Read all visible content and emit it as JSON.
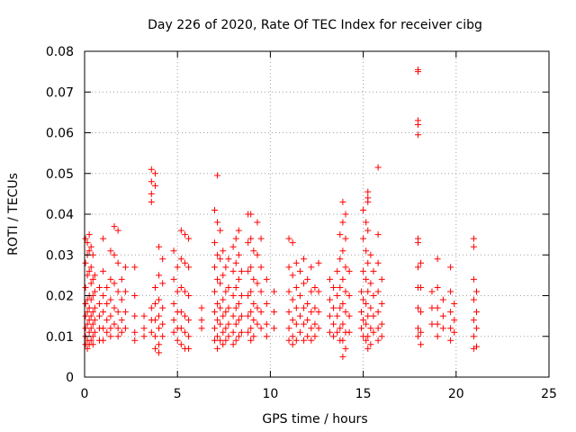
{
  "chart_data": {
    "type": "scatter",
    "title": "Day 226 of 2020, Rate Of TEC Index for receiver cibg",
    "xlabel": "GPS time / hours",
    "ylabel": "ROTI / TECUs",
    "xlim": [
      0,
      25
    ],
    "ylim": [
      0,
      0.08
    ],
    "xticks": [
      0,
      5,
      10,
      15,
      20,
      25
    ],
    "yticks": [
      0,
      0.01,
      0.02,
      0.03,
      0.04,
      0.05,
      0.06,
      0.07,
      0.08
    ],
    "xtick_labels": [
      "0",
      "5",
      "10",
      "15",
      "20",
      "25"
    ],
    "ytick_labels": [
      "0",
      "0.01",
      "0.02",
      "0.03",
      "0.04",
      "0.05",
      "0.06",
      "0.07",
      "0.08"
    ],
    "grid": true,
    "marker": "+",
    "color": "#ff0000",
    "points": [
      [
        0.05,
        0.034
      ],
      [
        0.05,
        0.028
      ],
      [
        0.05,
        0.022
      ],
      [
        0.05,
        0.018
      ],
      [
        0.05,
        0.015
      ],
      [
        0.05,
        0.012
      ],
      [
        0.05,
        0.01
      ],
      [
        0.05,
        0.008
      ],
      [
        0.15,
        0.033
      ],
      [
        0.15,
        0.03
      ],
      [
        0.15,
        0.025
      ],
      [
        0.15,
        0.019
      ],
      [
        0.15,
        0.016
      ],
      [
        0.15,
        0.013
      ],
      [
        0.15,
        0.009
      ],
      [
        0.15,
        0.007
      ],
      [
        0.25,
        0.035
      ],
      [
        0.25,
        0.031
      ],
      [
        0.25,
        0.026
      ],
      [
        0.25,
        0.02
      ],
      [
        0.25,
        0.017
      ],
      [
        0.25,
        0.014
      ],
      [
        0.25,
        0.011
      ],
      [
        0.25,
        0.008
      ],
      [
        0.35,
        0.032
      ],
      [
        0.35,
        0.027
      ],
      [
        0.35,
        0.023
      ],
      [
        0.35,
        0.019
      ],
      [
        0.35,
        0.015
      ],
      [
        0.35,
        0.012
      ],
      [
        0.35,
        0.009
      ],
      [
        0.45,
        0.03
      ],
      [
        0.45,
        0.024
      ],
      [
        0.45,
        0.02
      ],
      [
        0.45,
        0.016
      ],
      [
        0.45,
        0.013
      ],
      [
        0.45,
        0.01
      ],
      [
        0.45,
        0.008
      ],
      [
        0.55,
        0.025
      ],
      [
        0.55,
        0.021
      ],
      [
        0.55,
        0.017
      ],
      [
        0.55,
        0.014
      ],
      [
        0.55,
        0.011
      ],
      [
        0.8,
        0.022
      ],
      [
        0.8,
        0.018
      ],
      [
        0.8,
        0.015
      ],
      [
        0.8,
        0.012
      ],
      [
        0.8,
        0.009
      ],
      [
        1.0,
        0.034
      ],
      [
        1.0,
        0.026
      ],
      [
        1.0,
        0.02
      ],
      [
        1.0,
        0.016
      ],
      [
        1.0,
        0.012
      ],
      [
        1.0,
        0.009
      ],
      [
        1.2,
        0.022
      ],
      [
        1.2,
        0.018
      ],
      [
        1.2,
        0.014
      ],
      [
        1.2,
        0.011
      ],
      [
        1.4,
        0.031
      ],
      [
        1.4,
        0.024
      ],
      [
        1.4,
        0.019
      ],
      [
        1.4,
        0.015
      ],
      [
        1.4,
        0.012
      ],
      [
        1.4,
        0.01
      ],
      [
        1.6,
        0.037
      ],
      [
        1.6,
        0.03
      ],
      [
        1.6,
        0.023
      ],
      [
        1.6,
        0.017
      ],
      [
        1.6,
        0.013
      ],
      [
        1.8,
        0.036
      ],
      [
        1.8,
        0.028
      ],
      [
        1.8,
        0.021
      ],
      [
        1.8,
        0.016
      ],
      [
        1.8,
        0.012
      ],
      [
        1.8,
        0.01
      ],
      [
        2.0,
        0.024
      ],
      [
        2.0,
        0.019
      ],
      [
        2.0,
        0.014
      ],
      [
        2.0,
        0.011
      ],
      [
        2.2,
        0.027
      ],
      [
        2.2,
        0.021
      ],
      [
        2.2,
        0.016
      ],
      [
        2.2,
        0.012
      ],
      [
        2.7,
        0.027
      ],
      [
        2.7,
        0.02
      ],
      [
        2.7,
        0.015
      ],
      [
        2.7,
        0.011
      ],
      [
        2.7,
        0.009
      ],
      [
        3.2,
        0.015
      ],
      [
        3.2,
        0.012
      ],
      [
        3.2,
        0.01
      ],
      [
        3.6,
        0.051
      ],
      [
        3.6,
        0.048
      ],
      [
        3.6,
        0.045
      ],
      [
        3.6,
        0.043
      ],
      [
        3.6,
        0.017
      ],
      [
        3.6,
        0.014
      ],
      [
        3.6,
        0.011
      ],
      [
        3.8,
        0.05
      ],
      [
        3.8,
        0.047
      ],
      [
        3.8,
        0.022
      ],
      [
        3.8,
        0.018
      ],
      [
        3.8,
        0.014
      ],
      [
        3.8,
        0.01
      ],
      [
        3.8,
        0.007
      ],
      [
        4.0,
        0.032
      ],
      [
        4.0,
        0.025
      ],
      [
        4.0,
        0.019
      ],
      [
        4.0,
        0.015
      ],
      [
        4.0,
        0.012
      ],
      [
        4.0,
        0.008
      ],
      [
        4.0,
        0.006
      ],
      [
        4.2,
        0.029
      ],
      [
        4.2,
        0.023
      ],
      [
        4.2,
        0.017
      ],
      [
        4.2,
        0.013
      ],
      [
        4.2,
        0.01
      ],
      [
        4.8,
        0.031
      ],
      [
        4.8,
        0.024
      ],
      [
        4.8,
        0.018
      ],
      [
        4.8,
        0.014
      ],
      [
        4.8,
        0.011
      ],
      [
        5.0,
        0.027
      ],
      [
        5.0,
        0.021
      ],
      [
        5.0,
        0.016
      ],
      [
        5.0,
        0.012
      ],
      [
        5.0,
        0.009
      ],
      [
        5.2,
        0.036
      ],
      [
        5.2,
        0.029
      ],
      [
        5.2,
        0.022
      ],
      [
        5.2,
        0.016
      ],
      [
        5.2,
        0.012
      ],
      [
        5.2,
        0.008
      ],
      [
        5.4,
        0.035
      ],
      [
        5.4,
        0.028
      ],
      [
        5.4,
        0.021
      ],
      [
        5.4,
        0.015
      ],
      [
        5.4,
        0.011
      ],
      [
        5.4,
        0.007
      ],
      [
        5.6,
        0.034
      ],
      [
        5.6,
        0.027
      ],
      [
        5.6,
        0.02
      ],
      [
        5.6,
        0.014
      ],
      [
        5.6,
        0.01
      ],
      [
        5.6,
        0.007
      ],
      [
        6.3,
        0.017
      ],
      [
        6.3,
        0.014
      ],
      [
        6.3,
        0.012
      ],
      [
        7.0,
        0.041
      ],
      [
        7.0,
        0.033
      ],
      [
        7.0,
        0.027
      ],
      [
        7.0,
        0.021
      ],
      [
        7.0,
        0.016
      ],
      [
        7.0,
        0.012
      ],
      [
        7.0,
        0.009
      ],
      [
        7.15,
        0.0495
      ],
      [
        7.15,
        0.038
      ],
      [
        7.15,
        0.03
      ],
      [
        7.15,
        0.024
      ],
      [
        7.15,
        0.018
      ],
      [
        7.15,
        0.014
      ],
      [
        7.15,
        0.01
      ],
      [
        7.15,
        0.007
      ],
      [
        7.3,
        0.036
      ],
      [
        7.3,
        0.029
      ],
      [
        7.3,
        0.023
      ],
      [
        7.3,
        0.017
      ],
      [
        7.3,
        0.013
      ],
      [
        7.3,
        0.009
      ],
      [
        7.45,
        0.031
      ],
      [
        7.45,
        0.025
      ],
      [
        7.45,
        0.019
      ],
      [
        7.45,
        0.015
      ],
      [
        7.45,
        0.011
      ],
      [
        7.45,
        0.008
      ],
      [
        7.6,
        0.027
      ],
      [
        7.6,
        0.021
      ],
      [
        7.6,
        0.016
      ],
      [
        7.6,
        0.012
      ],
      [
        7.6,
        0.009
      ],
      [
        7.75,
        0.029
      ],
      [
        7.75,
        0.022
      ],
      [
        7.75,
        0.017
      ],
      [
        7.75,
        0.013
      ],
      [
        7.75,
        0.01
      ],
      [
        8.0,
        0.032
      ],
      [
        8.0,
        0.026
      ],
      [
        8.0,
        0.02
      ],
      [
        8.0,
        0.015
      ],
      [
        8.0,
        0.011
      ],
      [
        8.0,
        0.008
      ],
      [
        8.15,
        0.034
      ],
      [
        8.15,
        0.028
      ],
      [
        8.15,
        0.022
      ],
      [
        8.15,
        0.017
      ],
      [
        8.15,
        0.013
      ],
      [
        8.15,
        0.009
      ],
      [
        8.3,
        0.036
      ],
      [
        8.3,
        0.03
      ],
      [
        8.3,
        0.024
      ],
      [
        8.3,
        0.018
      ],
      [
        8.3,
        0.014
      ],
      [
        8.3,
        0.01
      ],
      [
        8.45,
        0.026
      ],
      [
        8.45,
        0.02
      ],
      [
        8.45,
        0.015
      ],
      [
        8.45,
        0.011
      ],
      [
        8.8,
        0.04
      ],
      [
        8.8,
        0.033
      ],
      [
        8.8,
        0.026
      ],
      [
        8.8,
        0.02
      ],
      [
        8.8,
        0.015
      ],
      [
        8.8,
        0.011
      ],
      [
        8.95,
        0.04
      ],
      [
        8.95,
        0.034
      ],
      [
        8.95,
        0.027
      ],
      [
        8.95,
        0.021
      ],
      [
        8.95,
        0.016
      ],
      [
        8.95,
        0.012
      ],
      [
        8.95,
        0.009
      ],
      [
        9.1,
        0.031
      ],
      [
        9.1,
        0.024
      ],
      [
        9.1,
        0.018
      ],
      [
        9.1,
        0.014
      ],
      [
        9.1,
        0.01
      ],
      [
        9.3,
        0.038
      ],
      [
        9.3,
        0.03
      ],
      [
        9.3,
        0.023
      ],
      [
        9.3,
        0.017
      ],
      [
        9.3,
        0.013
      ],
      [
        9.5,
        0.034
      ],
      [
        9.5,
        0.027
      ],
      [
        9.5,
        0.021
      ],
      [
        9.5,
        0.016
      ],
      [
        9.5,
        0.012
      ],
      [
        9.8,
        0.024
      ],
      [
        9.8,
        0.018
      ],
      [
        9.8,
        0.013
      ],
      [
        9.8,
        0.01
      ],
      [
        10.2,
        0.021
      ],
      [
        10.2,
        0.016
      ],
      [
        10.2,
        0.012
      ],
      [
        11.0,
        0.034
      ],
      [
        11.0,
        0.027
      ],
      [
        11.0,
        0.021
      ],
      [
        11.0,
        0.016
      ],
      [
        11.0,
        0.012
      ],
      [
        11.0,
        0.009
      ],
      [
        11.2,
        0.033
      ],
      [
        11.2,
        0.025
      ],
      [
        11.2,
        0.019
      ],
      [
        11.2,
        0.014
      ],
      [
        11.2,
        0.01
      ],
      [
        11.2,
        0.008
      ],
      [
        11.4,
        0.028
      ],
      [
        11.4,
        0.022
      ],
      [
        11.4,
        0.017
      ],
      [
        11.4,
        0.013
      ],
      [
        11.4,
        0.009
      ],
      [
        11.6,
        0.026
      ],
      [
        11.6,
        0.02
      ],
      [
        11.6,
        0.015
      ],
      [
        11.6,
        0.011
      ],
      [
        11.8,
        0.029
      ],
      [
        11.8,
        0.023
      ],
      [
        11.8,
        0.017
      ],
      [
        11.8,
        0.013
      ],
      [
        11.8,
        0.009
      ],
      [
        12.0,
        0.024
      ],
      [
        12.0,
        0.018
      ],
      [
        12.0,
        0.014
      ],
      [
        12.0,
        0.01
      ],
      [
        12.2,
        0.027
      ],
      [
        12.2,
        0.021
      ],
      [
        12.2,
        0.016
      ],
      [
        12.2,
        0.012
      ],
      [
        12.2,
        0.009
      ],
      [
        12.4,
        0.022
      ],
      [
        12.4,
        0.017
      ],
      [
        12.4,
        0.013
      ],
      [
        12.4,
        0.01
      ],
      [
        12.6,
        0.028
      ],
      [
        12.6,
        0.021
      ],
      [
        12.6,
        0.016
      ],
      [
        12.6,
        0.012
      ],
      [
        13.2,
        0.024
      ],
      [
        13.2,
        0.019
      ],
      [
        13.2,
        0.015
      ],
      [
        13.2,
        0.011
      ],
      [
        13.4,
        0.022
      ],
      [
        13.4,
        0.017
      ],
      [
        13.4,
        0.013
      ],
      [
        13.4,
        0.01
      ],
      [
        13.6,
        0.026
      ],
      [
        13.6,
        0.02
      ],
      [
        13.6,
        0.015
      ],
      [
        13.6,
        0.011
      ],
      [
        13.75,
        0.035
      ],
      [
        13.75,
        0.029
      ],
      [
        13.75,
        0.022
      ],
      [
        13.75,
        0.017
      ],
      [
        13.75,
        0.012
      ],
      [
        13.75,
        0.009
      ],
      [
        13.9,
        0.043
      ],
      [
        13.9,
        0.038
      ],
      [
        13.9,
        0.031
      ],
      [
        13.9,
        0.024
      ],
      [
        13.9,
        0.018
      ],
      [
        13.9,
        0.013
      ],
      [
        13.9,
        0.009
      ],
      [
        13.9,
        0.005
      ],
      [
        14.05,
        0.04
      ],
      [
        14.05,
        0.034
      ],
      [
        14.05,
        0.027
      ],
      [
        14.05,
        0.021
      ],
      [
        14.05,
        0.016
      ],
      [
        14.05,
        0.011
      ],
      [
        14.05,
        0.007
      ],
      [
        14.25,
        0.026
      ],
      [
        14.25,
        0.02
      ],
      [
        14.25,
        0.015
      ],
      [
        14.25,
        0.011
      ],
      [
        14.9,
        0.021
      ],
      [
        14.9,
        0.016
      ],
      [
        14.9,
        0.012
      ],
      [
        15.0,
        0.041
      ],
      [
        15.0,
        0.034
      ],
      [
        15.0,
        0.026
      ],
      [
        15.0,
        0.019
      ],
      [
        15.0,
        0.014
      ],
      [
        15.0,
        0.01
      ],
      [
        15.15,
        0.038
      ],
      [
        15.15,
        0.031
      ],
      [
        15.15,
        0.024
      ],
      [
        15.15,
        0.018
      ],
      [
        15.15,
        0.013
      ],
      [
        15.15,
        0.009
      ],
      [
        15.25,
        0.0455
      ],
      [
        15.25,
        0.044
      ],
      [
        15.25,
        0.043
      ],
      [
        15.25,
        0.036
      ],
      [
        15.25,
        0.028
      ],
      [
        15.25,
        0.021
      ],
      [
        15.25,
        0.015
      ],
      [
        15.25,
        0.01
      ],
      [
        15.25,
        0.007
      ],
      [
        15.4,
        0.03
      ],
      [
        15.4,
        0.023
      ],
      [
        15.4,
        0.017
      ],
      [
        15.4,
        0.012
      ],
      [
        15.4,
        0.008
      ],
      [
        15.55,
        0.026
      ],
      [
        15.55,
        0.02
      ],
      [
        15.55,
        0.015
      ],
      [
        15.55,
        0.011
      ],
      [
        15.8,
        0.0515
      ],
      [
        15.8,
        0.035
      ],
      [
        15.8,
        0.028
      ],
      [
        15.8,
        0.021
      ],
      [
        15.8,
        0.016
      ],
      [
        15.8,
        0.012
      ],
      [
        15.8,
        0.009
      ],
      [
        16.0,
        0.024
      ],
      [
        16.0,
        0.018
      ],
      [
        16.0,
        0.013
      ],
      [
        16.0,
        0.01
      ],
      [
        17.95,
        0.0755
      ],
      [
        17.95,
        0.075
      ],
      [
        17.95,
        0.063
      ],
      [
        17.95,
        0.062
      ],
      [
        17.95,
        0.0595
      ],
      [
        17.95,
        0.034
      ],
      [
        17.95,
        0.033
      ],
      [
        17.95,
        0.027
      ],
      [
        17.95,
        0.022
      ],
      [
        17.95,
        0.017
      ],
      [
        17.95,
        0.012
      ],
      [
        17.95,
        0.01
      ],
      [
        18.1,
        0.028
      ],
      [
        18.1,
        0.022
      ],
      [
        18.1,
        0.016
      ],
      [
        18.1,
        0.011
      ],
      [
        18.1,
        0.008
      ],
      [
        18.7,
        0.021
      ],
      [
        18.7,
        0.017
      ],
      [
        18.7,
        0.013
      ],
      [
        19.0,
        0.029
      ],
      [
        19.0,
        0.022
      ],
      [
        19.0,
        0.017
      ],
      [
        19.0,
        0.013
      ],
      [
        19.0,
        0.01
      ],
      [
        19.3,
        0.019
      ],
      [
        19.3,
        0.015
      ],
      [
        19.3,
        0.012
      ],
      [
        19.7,
        0.027
      ],
      [
        19.7,
        0.021
      ],
      [
        19.7,
        0.016
      ],
      [
        19.7,
        0.012
      ],
      [
        19.7,
        0.009
      ],
      [
        19.9,
        0.018
      ],
      [
        19.9,
        0.014
      ],
      [
        19.9,
        0.011
      ],
      [
        20.95,
        0.034
      ],
      [
        20.95,
        0.032
      ],
      [
        20.95,
        0.024
      ],
      [
        20.95,
        0.019
      ],
      [
        20.95,
        0.014
      ],
      [
        20.95,
        0.01
      ],
      [
        20.95,
        0.007
      ],
      [
        21.1,
        0.021
      ],
      [
        21.1,
        0.016
      ],
      [
        21.1,
        0.012
      ],
      [
        21.1,
        0.0075
      ]
    ]
  }
}
